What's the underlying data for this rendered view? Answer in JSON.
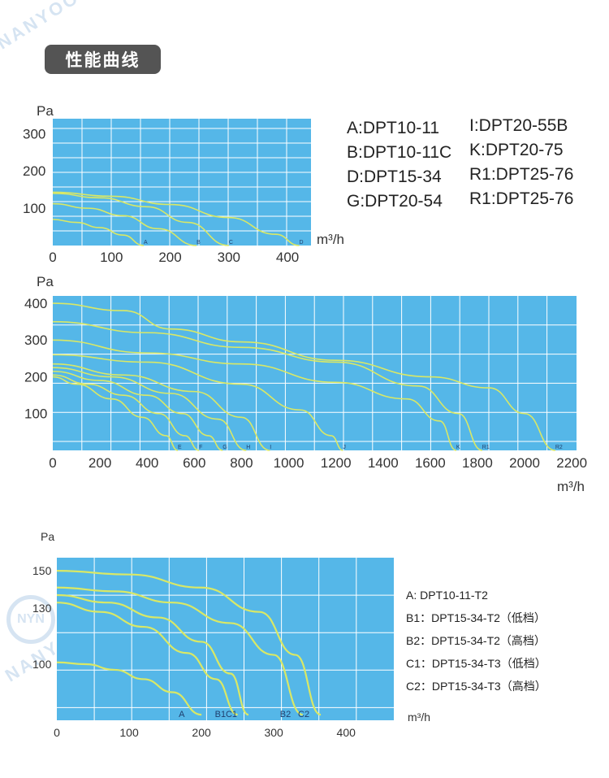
{
  "page": {
    "title": "性能曲线",
    "watermark_text": "NANYOO",
    "logo_text": "NYN"
  },
  "legend1": {
    "col1": [
      "A:DPT10-11",
      "B:DPT10-11C",
      "D:DPT15-34",
      "G:DPT20-54"
    ],
    "col2": [
      "I:DPT20-55B",
      "K:DPT20-75",
      "R1:DPT25-76",
      "R1:DPT25-76"
    ]
  },
  "legend3": [
    "A:  DPT10-11-T2",
    "B1：DPT15-34-T2（低档）",
    "B2：DPT15-34-T2（高档）",
    "C1：DPT15-34-T3（低档）",
    "C2：DPT15-34-T3（高档）"
  ],
  "colors": {
    "plot_bg": "#55b7e8",
    "grid": "#ffffff",
    "curve": "#d9e866",
    "title_bg": "#545454"
  },
  "chart_data": [
    {
      "type": "line",
      "ylabel": "Pa",
      "xlabel": "m³/h",
      "xlim": [
        0,
        440
      ],
      "ylim": [
        0,
        340
      ],
      "xticks": [
        0,
        100,
        200,
        300,
        400
      ],
      "yticks": [
        100,
        200,
        300
      ],
      "grid": true,
      "series": [
        {
          "name": "A",
          "points": [
            [
              0,
              70
            ],
            [
              40,
              62
            ],
            [
              80,
              48
            ],
            [
              120,
              28
            ],
            [
              155,
              0
            ]
          ]
        },
        {
          "name": "B",
          "points": [
            [
              0,
              112
            ],
            [
              60,
              100
            ],
            [
              120,
              80
            ],
            [
              180,
              45
            ],
            [
              245,
              0
            ]
          ]
        },
        {
          "name": "C",
          "points": [
            [
              0,
              140
            ],
            [
              80,
              128
            ],
            [
              160,
              104
            ],
            [
              230,
              62
            ],
            [
              300,
              0
            ]
          ]
        },
        {
          "name": "D",
          "points": [
            [
              0,
              143
            ],
            [
              100,
              132
            ],
            [
              200,
              110
            ],
            [
              300,
              75
            ],
            [
              380,
              30
            ],
            [
              420,
              0
            ]
          ]
        }
      ]
    },
    {
      "type": "line",
      "ylabel": "Pa",
      "xlabel": "m³/h",
      "xlim": [
        0,
        2220
      ],
      "ylim": [
        0,
        420
      ],
      "xticks": [
        0,
        200,
        400,
        600,
        800,
        1000,
        1200,
        1400,
        1600,
        1800,
        2000,
        2200
      ],
      "yticks": [
        100,
        200,
        300,
        400
      ],
      "grid": true,
      "series": [
        {
          "name": "E",
          "points": [
            [
              0,
              200
            ],
            [
              100,
              180
            ],
            [
              250,
              140
            ],
            [
              380,
              90
            ],
            [
              480,
              40
            ],
            [
              530,
              0
            ]
          ]
        },
        {
          "name": "F",
          "points": [
            [
              0,
              205
            ],
            [
              150,
              180
            ],
            [
              300,
              150
            ],
            [
              450,
              100
            ],
            [
              560,
              40
            ],
            [
              620,
              0
            ]
          ]
        },
        {
          "name": "G",
          "points": [
            [
              0,
              215
            ],
            [
              200,
              190
            ],
            [
              400,
              150
            ],
            [
              550,
              100
            ],
            [
              660,
              40
            ],
            [
              720,
              0
            ]
          ]
        },
        {
          "name": "H",
          "points": [
            [
              0,
              225
            ],
            [
              250,
              200
            ],
            [
              500,
              155
            ],
            [
              700,
              85
            ],
            [
              820,
              0
            ]
          ]
        },
        {
          "name": "I",
          "points": [
            [
              0,
              235
            ],
            [
              300,
              205
            ],
            [
              600,
              160
            ],
            [
              800,
              90
            ],
            [
              920,
              0
            ]
          ]
        },
        {
          "name": "J",
          "points": [
            [
              0,
              260
            ],
            [
              400,
              240
            ],
            [
              800,
              180
            ],
            [
              1050,
              110
            ],
            [
              1180,
              40
            ],
            [
              1230,
              0
            ]
          ]
        },
        {
          "name": "K",
          "points": [
            [
              0,
              300
            ],
            [
              400,
              265
            ],
            [
              800,
              235
            ],
            [
              1200,
              185
            ],
            [
              1500,
              140
            ],
            [
              1640,
              80
            ],
            [
              1710,
              0
            ]
          ]
        },
        {
          "name": "R1",
          "points": [
            [
              0,
              350
            ],
            [
              400,
              320
            ],
            [
              800,
              280
            ],
            [
              1200,
              240
            ],
            [
              1550,
              175
            ],
            [
              1720,
              100
            ],
            [
              1820,
              0
            ]
          ]
        },
        {
          "name": "R2",
          "points": [
            [
              0,
              400
            ],
            [
              300,
              380
            ],
            [
              500,
              330
            ],
            [
              800,
              295
            ],
            [
              1200,
              245
            ],
            [
              1600,
              200
            ],
            [
              1850,
              170
            ],
            [
              2000,
              100
            ],
            [
              2130,
              0
            ]
          ]
        }
      ]
    },
    {
      "type": "line",
      "ylabel": "Pa",
      "xlabel": "m³/h",
      "xlim": [
        0,
        466
      ],
      "ylim": [
        70,
        157
      ],
      "xticks": [
        0,
        100,
        200,
        300,
        400
      ],
      "yticks": [
        100,
        130,
        150
      ],
      "grid": true,
      "series": [
        {
          "name": "A",
          "points": [
            [
              0,
              101
            ],
            [
              40,
              100
            ],
            [
              80,
              97
            ],
            [
              120,
              92
            ],
            [
              160,
              85
            ],
            [
              200,
              73
            ]
          ]
        },
        {
          "name": "B1",
          "points": [
            [
              0,
              133
            ],
            [
              60,
              128
            ],
            [
              120,
              120
            ],
            [
              180,
              106
            ],
            [
              220,
              92
            ],
            [
              250,
              73
            ]
          ]
        },
        {
          "name": "C1",
          "points": [
            [
              0,
              137
            ],
            [
              70,
              133
            ],
            [
              140,
              125
            ],
            [
              200,
              112
            ],
            [
              240,
              95
            ],
            [
              265,
              73
            ]
          ]
        },
        {
          "name": "B2",
          "points": [
            [
              0,
              141
            ],
            [
              80,
              139
            ],
            [
              160,
              133
            ],
            [
              240,
              122
            ],
            [
              300,
              105
            ],
            [
              340,
              73
            ]
          ]
        },
        {
          "name": "C2",
          "points": [
            [
              0,
              150
            ],
            [
              100,
              148
            ],
            [
              200,
              141
            ],
            [
              280,
              128
            ],
            [
              330,
              105
            ],
            [
              365,
              73
            ]
          ]
        }
      ]
    }
  ]
}
